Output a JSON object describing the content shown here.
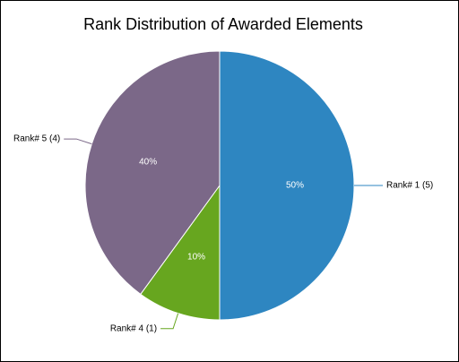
{
  "chart_data": {
    "type": "pie",
    "title": "Rank Distribution of Awarded Elements",
    "categories": [
      "Rank# 1 (5)",
      "Rank# 4 (1)",
      "Rank# 5 (4)"
    ],
    "values": [
      50,
      10,
      40
    ],
    "value_labels": [
      "50%",
      "10%",
      "40%"
    ],
    "colors": [
      "#2e86c1",
      "#67a61f",
      "#7b6888"
    ]
  }
}
